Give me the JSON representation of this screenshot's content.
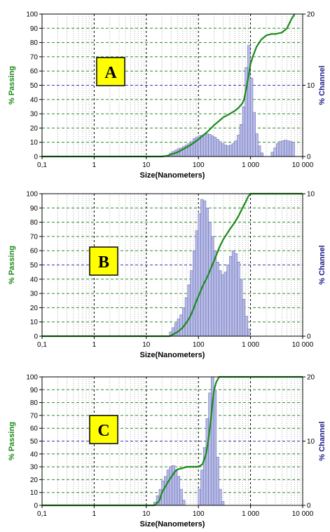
{
  "chart_data": [
    {
      "type": "bar",
      "panel_label": "A",
      "xlabel": "Size(Nanometers)",
      "ylabel_left": "% Passing",
      "ylabel_right": "% Channel",
      "x_scale": "log",
      "xlim": [
        0.1,
        10000
      ],
      "x_tick_labels": [
        "0,1",
        "1",
        "10",
        "100",
        "1 000",
        "10 000"
      ],
      "ylim_left": [
        0,
        100
      ],
      "y_left_ticks": [
        0,
        10,
        20,
        30,
        40,
        50,
        60,
        70,
        80,
        90,
        100
      ],
      "ylim_right": [
        0,
        20
      ],
      "y_right_ticks": [
        0,
        10,
        20
      ],
      "grid": true,
      "colors": {
        "bars": "#b8bce6",
        "bar_edge": "#6a6eb4",
        "passing_line": "#1a8a1a",
        "grid_green": "#2e8b2e",
        "grid_blue": "#3b3bb0",
        "badge": "#ffff00"
      },
      "series": [
        {
          "name": "% Channel",
          "axis": "right",
          "x": [
            29.4,
            33.0,
            37.0,
            41.6,
            46.6,
            52.3,
            58.7,
            65.9,
            74.0,
            83.0,
            93.1,
            104.5,
            117.2,
            131.5,
            147.6,
            165.6,
            185.8,
            208.5,
            234.0,
            262.5,
            294.6,
            330.5,
            370.8,
            416.1,
            466.9,
            523.9,
            587.8,
            659.6,
            740.1,
            830.4,
            931.8,
            1045.5,
            1173.1,
            1316.3,
            1477.0,
            1657.2,
            1859.5,
            2086.4,
            2341.1,
            2626.8,
            2947.4,
            3307.1,
            3710.7,
            4163.6,
            4671.7,
            5241.9,
            5881.6,
            6599.4,
            7404.8
          ],
          "values": [
            0.5,
            0.7,
            0.9,
            1.1,
            1.2,
            1.4,
            1.6,
            1.8,
            2.1,
            2.5,
            2.7,
            2.9,
            3.0,
            3.1,
            3.2,
            3.1,
            2.9,
            2.7,
            2.4,
            2.1,
            1.8,
            1.6,
            1.5,
            1.6,
            1.8,
            2.2,
            3.0,
            4.5,
            7.0,
            12.5,
            15.6,
            11.0,
            6.2,
            3.2,
            1.5,
            0.5,
            0,
            0,
            0,
            0.6,
            1.2,
            1.8,
            2.1,
            2.2,
            2.3,
            2.2,
            2.1,
            2.0,
            0
          ]
        },
        {
          "name": "% Passing",
          "axis": "left",
          "type": "line",
          "x": [
            0.1,
            10,
            20,
            25,
            30,
            40,
            50,
            70,
            100,
            150,
            200,
            300,
            400,
            500,
            600,
            700,
            750,
            800,
            850,
            900,
            950,
            1000,
            1100,
            1300,
            1600,
            2000,
            2500,
            3000,
            4000,
            5000,
            6000,
            7000
          ],
          "y": [
            0,
            0,
            0,
            0.5,
            1.5,
            3,
            5,
            8,
            12,
            17.5,
            22,
            27.5,
            30,
            32,
            34.5,
            37.5,
            40,
            45,
            50,
            55,
            60,
            65,
            70,
            77,
            82,
            85,
            86,
            86,
            87,
            90,
            96,
            100
          ]
        }
      ]
    },
    {
      "type": "bar",
      "panel_label": "B",
      "xlabel": "Size(Nanometers)",
      "ylabel_left": "% Passing",
      "ylabel_right": "% Channel",
      "x_scale": "log",
      "xlim": [
        0.1,
        10000
      ],
      "x_tick_labels": [
        "0,1",
        "1",
        "10",
        "100",
        "1 000",
        "10 000"
      ],
      "ylim_left": [
        0,
        100
      ],
      "y_left_ticks": [
        0,
        10,
        20,
        30,
        40,
        50,
        60,
        70,
        80,
        90,
        100
      ],
      "ylim_right": [
        0,
        10
      ],
      "y_right_ticks": [
        0,
        10
      ],
      "grid": true,
      "colors": {
        "bars": "#b8bce6",
        "bar_edge": "#6a6eb4",
        "passing_line": "#1a8a1a",
        "grid_green": "#2e8b2e",
        "grid_blue": "#3b3bb0",
        "badge": "#ffff00"
      },
      "series": [
        {
          "name": "% Channel",
          "axis": "right",
          "x": [
            29.4,
            33.0,
            37.0,
            41.6,
            46.6,
            52.3,
            58.7,
            65.9,
            74.0,
            83.0,
            93.1,
            104.5,
            117.2,
            131.5,
            147.6,
            165.6,
            185.8,
            208.5,
            234.0,
            262.5,
            294.6,
            330.5,
            370.8,
            416.1,
            466.9,
            523.9,
            587.8,
            659.6,
            740.1,
            830.4,
            931.8
          ],
          "values": [
            0.3,
            0.6,
            0.9,
            1.2,
            1.5,
            2.0,
            2.7,
            3.6,
            4.6,
            6.0,
            7.4,
            8.6,
            9.6,
            9.5,
            9.0,
            8.0,
            7.0,
            6.0,
            5.2,
            4.6,
            4.3,
            4.5,
            5.0,
            5.6,
            6.0,
            5.8,
            5.2,
            4.0,
            2.6,
            1.4,
            0.5
          ]
        },
        {
          "name": "% Passing",
          "axis": "left",
          "type": "line",
          "x": [
            0.1,
            28,
            30,
            40,
            50,
            60,
            70,
            80,
            90,
            100,
            120,
            150,
            200,
            250,
            300,
            400,
            500,
            600,
            700,
            800,
            900,
            1000,
            10000
          ],
          "y": [
            0,
            0,
            0.5,
            3,
            6,
            10,
            14,
            19,
            24,
            28,
            35,
            42,
            53,
            62,
            68,
            75,
            80,
            85,
            90,
            94,
            98,
            100,
            100
          ]
        }
      ]
    },
    {
      "type": "bar",
      "panel_label": "C",
      "xlabel": "Size(Nanometers)",
      "ylabel_left": "% Passing",
      "ylabel_right": "% Channel",
      "x_scale": "log",
      "xlim": [
        0.1,
        10000
      ],
      "x_tick_labels": [
        "0,1",
        "1",
        "10",
        "100",
        "1 000",
        "10 000"
      ],
      "ylim_left": [
        0,
        100
      ],
      "y_left_ticks": [
        0,
        10,
        20,
        30,
        40,
        50,
        60,
        70,
        80,
        90,
        100
      ],
      "ylim_right": [
        0,
        20
      ],
      "y_right_ticks": [
        0,
        10,
        20
      ],
      "grid": true,
      "colors": {
        "bars": "#b8bce6",
        "bar_edge": "#6a6eb4",
        "passing_line": "#1a8a1a",
        "grid_green": "#2e8b2e",
        "grid_blue": "#3b3bb0",
        "badge": "#ffff00"
      },
      "series": [
        {
          "name": "% Channel",
          "axis": "right",
          "x": [
            14.7,
            16.5,
            18.6,
            20.8,
            23.4,
            26.2,
            29.4,
            33.0,
            37.0,
            41.6,
            46.6,
            52.3,
            58.7,
            65.9,
            74.0,
            83.0,
            93.1,
            104.5,
            117.2,
            131.5,
            147.6,
            165.6,
            185.8,
            208.5,
            234.0,
            262.5,
            294.6
          ],
          "values": [
            0.5,
            1.5,
            2.5,
            3.8,
            4.5,
            5.5,
            6.0,
            6.2,
            5.6,
            4.5,
            2.5,
            0.8,
            0,
            0,
            0,
            0,
            0,
            2.5,
            5.5,
            9.0,
            13.5,
            17.5,
            20.0,
            18.0,
            7.5,
            2.5,
            0.6
          ]
        },
        {
          "name": "% Passing",
          "axis": "left",
          "type": "line",
          "x": [
            0.1,
            14,
            15,
            18,
            20,
            25,
            30,
            35,
            40,
            50,
            60,
            80,
            100,
            120,
            140,
            150,
            170,
            190,
            200,
            220,
            250,
            300,
            10000
          ],
          "y": [
            0,
            0,
            0.5,
            4,
            10,
            17,
            22,
            26,
            28,
            29,
            30,
            30,
            30,
            32,
            40,
            47,
            63,
            83,
            90,
            96,
            100,
            100,
            100
          ]
        }
      ]
    }
  ]
}
